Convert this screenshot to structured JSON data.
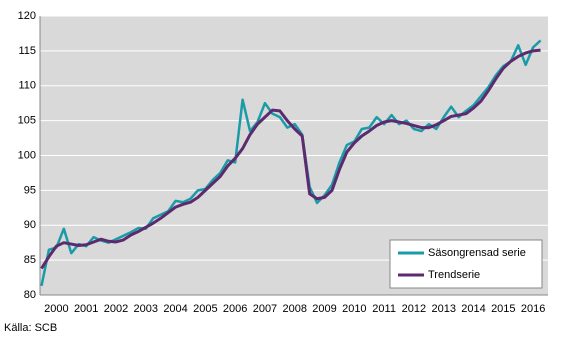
{
  "chart_data": {
    "type": "line",
    "x": [
      2000.0,
      2000.25,
      2000.5,
      2000.75,
      2001.0,
      2001.25,
      2001.5,
      2001.75,
      2002.0,
      2002.25,
      2002.5,
      2002.75,
      2003.0,
      2003.25,
      2003.5,
      2003.75,
      2004.0,
      2004.25,
      2004.5,
      2004.75,
      2005.0,
      2005.25,
      2005.5,
      2005.75,
      2006.0,
      2006.25,
      2006.5,
      2006.75,
      2007.0,
      2007.25,
      2007.5,
      2007.75,
      2008.0,
      2008.25,
      2008.5,
      2008.75,
      2009.0,
      2009.25,
      2009.5,
      2009.75,
      2010.0,
      2010.25,
      2010.5,
      2010.75,
      2011.0,
      2011.25,
      2011.5,
      2011.75,
      2012.0,
      2012.25,
      2012.5,
      2012.75,
      2013.0,
      2013.25,
      2013.5,
      2013.75,
      2014.0,
      2014.25,
      2014.5,
      2014.75,
      2015.0,
      2015.25,
      2015.5,
      2015.75,
      2016.0,
      2016.25,
      2016.5,
      2016.75
    ],
    "series": [
      {
        "name": "Säsongrensad serie",
        "color": "#1a9ba8",
        "width": 2.5,
        "values": [
          81.3,
          86.5,
          86.8,
          89.5,
          86.0,
          87.3,
          87.0,
          88.3,
          87.8,
          87.5,
          88.0,
          88.5,
          89.0,
          89.6,
          89.5,
          91.0,
          91.5,
          92.0,
          93.5,
          93.3,
          93.8,
          95.0,
          95.2,
          96.5,
          97.5,
          99.3,
          99.0,
          108.0,
          103.5,
          104.8,
          107.5,
          106.0,
          105.5,
          104.0,
          104.5,
          103.0,
          95.5,
          93.2,
          94.3,
          95.8,
          99.0,
          101.5,
          102.0,
          103.8,
          104.0,
          105.5,
          104.5,
          105.8,
          104.5,
          105.0,
          103.8,
          103.5,
          104.5,
          103.8,
          105.5,
          107.0,
          105.5,
          106.4,
          107.2,
          108.5,
          109.8,
          111.5,
          112.8,
          113.5,
          115.8,
          113.0,
          115.5,
          116.5
        ]
      },
      {
        "name": "Trendserie",
        "color": "#5c2a6e",
        "width": 3,
        "values": [
          83.8,
          85.5,
          87.0,
          87.5,
          87.3,
          87.1,
          87.2,
          87.6,
          88.0,
          87.7,
          87.6,
          87.9,
          88.6,
          89.1,
          89.7,
          90.3,
          91.0,
          91.8,
          92.6,
          93.0,
          93.3,
          94.0,
          95.0,
          96.0,
          97.0,
          98.5,
          99.6,
          101.0,
          103.0,
          104.5,
          105.5,
          106.5,
          106.4,
          105.0,
          103.8,
          102.8,
          94.5,
          93.8,
          94.0,
          95.0,
          98.0,
          100.5,
          101.8,
          102.8,
          103.5,
          104.3,
          104.8,
          105.0,
          104.8,
          104.6,
          104.3,
          104.0,
          104.0,
          104.4,
          105.0,
          105.6,
          105.8,
          106.0,
          106.8,
          107.8,
          109.3,
          111.0,
          112.5,
          113.5,
          114.2,
          114.7,
          115.0,
          115.1
        ]
      }
    ],
    "xlim": [
      1999.95,
      2017.0
    ],
    "xticks": [
      {
        "value": 2000.5,
        "label": "2000"
      },
      {
        "value": 2001.5,
        "label": "2001"
      },
      {
        "value": 2002.5,
        "label": "2002"
      },
      {
        "value": 2003.5,
        "label": "2003"
      },
      {
        "value": 2004.5,
        "label": "2004"
      },
      {
        "value": 2005.5,
        "label": "2005"
      },
      {
        "value": 2006.5,
        "label": "2006"
      },
      {
        "value": 2007.5,
        "label": "2007"
      },
      {
        "value": 2008.5,
        "label": "2008"
      },
      {
        "value": 2009.5,
        "label": "2009"
      },
      {
        "value": 2010.5,
        "label": "2010"
      },
      {
        "value": 2011.5,
        "label": "2011"
      },
      {
        "value": 2012.5,
        "label": "2012"
      },
      {
        "value": 2013.5,
        "label": "2013"
      },
      {
        "value": 2014.5,
        "label": "2014"
      },
      {
        "value": 2015.5,
        "label": "2015"
      },
      {
        "value": 2016.5,
        "label": "2016"
      }
    ],
    "ylim": [
      80,
      120
    ],
    "yticks": [
      80,
      85,
      90,
      95,
      100,
      105,
      110,
      115,
      120
    ],
    "grid": true,
    "legend": "lower right",
    "source": "Källa: SCB"
  }
}
